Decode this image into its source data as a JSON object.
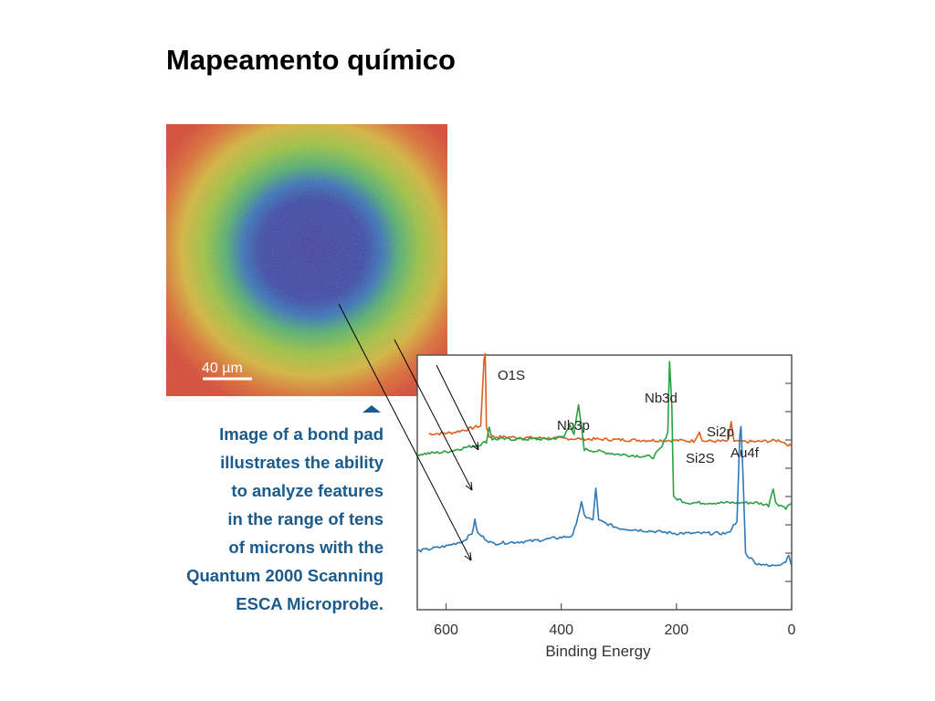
{
  "slide": {
    "title": "Mapeamento químico"
  },
  "image_map": {
    "scale_bar_label": "40 µm"
  },
  "caption": {
    "lines": [
      "Image of a bond pad",
      "illustrates the ability",
      "to analyze features",
      "in the range of tens",
      "of microns with the",
      "Quantum 2000 Scanning",
      "ESCA Microprobe."
    ]
  },
  "colors": {
    "orange_series": "#d9601e",
    "green_series": "#2aa043",
    "blue_series": "#2e78b7",
    "caption_text": "#1a5a8c"
  },
  "chart_data": {
    "type": "line",
    "xlabel": "Binding Energy",
    "xlim": [
      650,
      0
    ],
    "x_ticks": [
      600,
      400,
      200,
      0
    ],
    "ylabel": "",
    "grid": false,
    "series": [
      {
        "color": "#d9601e",
        "points": [
          [
            630,
            0.69
          ],
          [
            590,
            0.695
          ],
          [
            560,
            0.71
          ],
          [
            545,
            0.72
          ],
          [
            540,
            0.72
          ],
          [
            534,
            0.99
          ],
          [
            532,
            1.0
          ],
          [
            530,
            0.72
          ],
          [
            525,
            0.68
          ],
          [
            450,
            0.675
          ],
          [
            350,
            0.67
          ],
          [
            250,
            0.665
          ],
          [
            200,
            0.665
          ],
          [
            170,
            0.662
          ],
          [
            160,
            0.7
          ],
          [
            155,
            0.662
          ],
          [
            110,
            0.662
          ],
          [
            105,
            0.74
          ],
          [
            100,
            0.66
          ],
          [
            60,
            0.66
          ],
          [
            20,
            0.665
          ],
          [
            0,
            0.64
          ]
        ]
      },
      {
        "color": "#2aa043",
        "points": [
          [
            650,
            0.61
          ],
          [
            600,
            0.62
          ],
          [
            560,
            0.64
          ],
          [
            540,
            0.65
          ],
          [
            530,
            0.66
          ],
          [
            525,
            0.72
          ],
          [
            520,
            0.67
          ],
          [
            480,
            0.67
          ],
          [
            420,
            0.67
          ],
          [
            395,
            0.68
          ],
          [
            385,
            0.73
          ],
          [
            378,
            0.69
          ],
          [
            370,
            0.8
          ],
          [
            365,
            0.72
          ],
          [
            360,
            0.63
          ],
          [
            300,
            0.61
          ],
          [
            240,
            0.6
          ],
          [
            225,
            0.64
          ],
          [
            215,
            0.7
          ],
          [
            212,
            0.98
          ],
          [
            208,
            0.8
          ],
          [
            205,
            0.44
          ],
          [
            180,
            0.42
          ],
          [
            100,
            0.42
          ],
          [
            60,
            0.42
          ],
          [
            40,
            0.41
          ],
          [
            32,
            0.48
          ],
          [
            28,
            0.42
          ],
          [
            10,
            0.4
          ],
          [
            0,
            0.42
          ]
        ]
      },
      {
        "color": "#2e78b7",
        "points": [
          [
            650,
            0.23
          ],
          [
            600,
            0.25
          ],
          [
            570,
            0.27
          ],
          [
            555,
            0.3
          ],
          [
            550,
            0.35
          ],
          [
            545,
            0.3
          ],
          [
            520,
            0.26
          ],
          [
            450,
            0.27
          ],
          [
            380,
            0.29
          ],
          [
            365,
            0.42
          ],
          [
            360,
            0.37
          ],
          [
            345,
            0.35
          ],
          [
            340,
            0.48
          ],
          [
            335,
            0.35
          ],
          [
            300,
            0.32
          ],
          [
            250,
            0.31
          ],
          [
            200,
            0.3
          ],
          [
            150,
            0.3
          ],
          [
            110,
            0.3
          ],
          [
            95,
            0.35
          ],
          [
            90,
            0.68
          ],
          [
            88,
            0.72
          ],
          [
            84,
            0.5
          ],
          [
            80,
            0.22
          ],
          [
            60,
            0.18
          ],
          [
            50,
            0.18
          ],
          [
            40,
            0.17
          ],
          [
            20,
            0.18
          ],
          [
            10,
            0.19
          ],
          [
            5,
            0.22
          ],
          [
            0,
            0.17
          ]
        ]
      }
    ],
    "annotations": [
      "O1S",
      "Nb3p",
      "Nb3d",
      "Si2p",
      "Si2S",
      "Au4f"
    ]
  }
}
